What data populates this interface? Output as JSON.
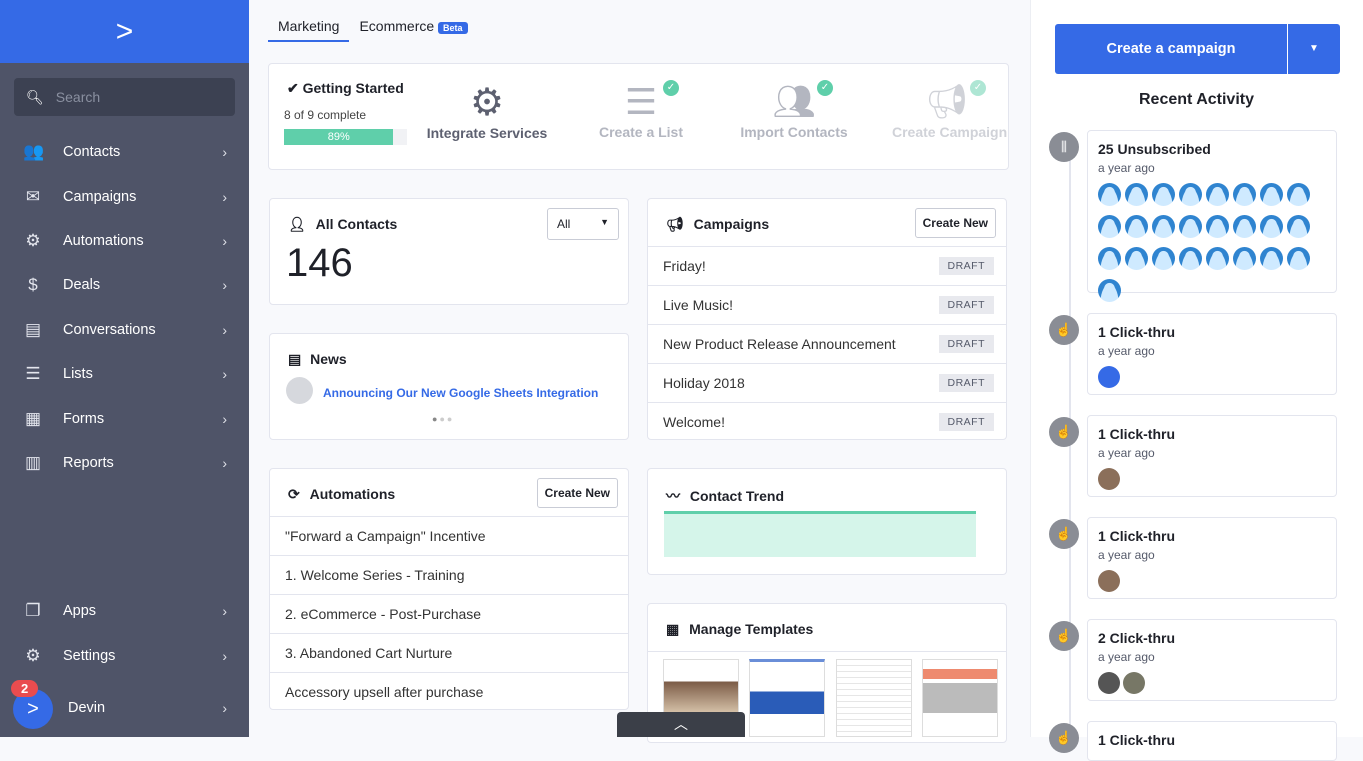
{
  "sidebar": {
    "search_placeholder": "Search",
    "items": [
      {
        "label": "Contacts",
        "icon": "contacts-icon",
        "glyph": "👥"
      },
      {
        "label": "Campaigns",
        "icon": "envelope-icon",
        "glyph": "✉"
      },
      {
        "label": "Automations",
        "icon": "automations-icon",
        "glyph": "⚙"
      },
      {
        "label": "Deals",
        "icon": "dollar-icon",
        "glyph": "$"
      },
      {
        "label": "Conversations",
        "icon": "chat-icon",
        "glyph": "▤"
      },
      {
        "label": "Lists",
        "icon": "list-icon",
        "glyph": "☰"
      },
      {
        "label": "Forms",
        "icon": "form-icon",
        "glyph": "▦"
      },
      {
        "label": "Reports",
        "icon": "bar-chart-icon",
        "glyph": "▥"
      }
    ],
    "bottom": [
      {
        "label": "Apps",
        "icon": "apps-icon",
        "glyph": "❐"
      },
      {
        "label": "Settings",
        "icon": "gear-icon",
        "glyph": "⚙"
      }
    ],
    "user": {
      "name": "Devin",
      "badge": "2"
    }
  },
  "tabs": [
    {
      "label": "Marketing",
      "active": true
    },
    {
      "label": "Ecommerce",
      "badge": "Beta"
    }
  ],
  "getting_started": {
    "title": "Getting Started",
    "progress_text": "8 of 9 complete",
    "percent": 89,
    "percent_label": "89%",
    "steps": [
      {
        "label": "Integrate Services",
        "done": false
      },
      {
        "label": "Create a List",
        "done": true
      },
      {
        "label": "Import Contacts",
        "done": true
      },
      {
        "label": "Create Campaign",
        "done": true
      }
    ]
  },
  "contacts": {
    "title": "All Contacts",
    "filter": "All",
    "count": "146"
  },
  "news": {
    "title": "News",
    "link": "Announcing Our New Google Sheets Integration"
  },
  "automations": {
    "title": "Automations",
    "create": "Create New",
    "items": [
      "\"Forward a Campaign\" Incentive",
      "1. Welcome Series - Training",
      "2. eCommerce - Post-Purchase",
      "3. Abandoned Cart Nurture",
      "Accessory upsell after purchase"
    ]
  },
  "campaigns": {
    "title": "Campaigns",
    "create": "Create New",
    "items": [
      {
        "name": "Friday!",
        "status": "DRAFT"
      },
      {
        "name": "Live Music!",
        "status": "DRAFT"
      },
      {
        "name": "New Product Release Announcement",
        "status": "DRAFT"
      },
      {
        "name": "Holiday 2018",
        "status": "DRAFT"
      },
      {
        "name": "Welcome!",
        "status": "DRAFT"
      }
    ]
  },
  "trend": {
    "title": "Contact Trend"
  },
  "templates": {
    "title": "Manage Templates"
  },
  "right": {
    "create_button": "Create a campaign",
    "title": "Recent Activity",
    "activities": [
      {
        "title": "25 Unsubscribed",
        "time": "a year ago",
        "avatars": 25
      },
      {
        "title": "1 Click-thru",
        "time": "a year ago"
      },
      {
        "title": "1 Click-thru",
        "time": "a year ago"
      },
      {
        "title": "1 Click-thru",
        "time": "a year ago"
      },
      {
        "title": "2 Click-thru",
        "time": "a year ago"
      },
      {
        "title": "1 Click-thru",
        "time": ""
      }
    ]
  },
  "colors": {
    "brand": "#356ae6",
    "sidebar": "#4f5468",
    "progress": "#5fcfaa"
  }
}
